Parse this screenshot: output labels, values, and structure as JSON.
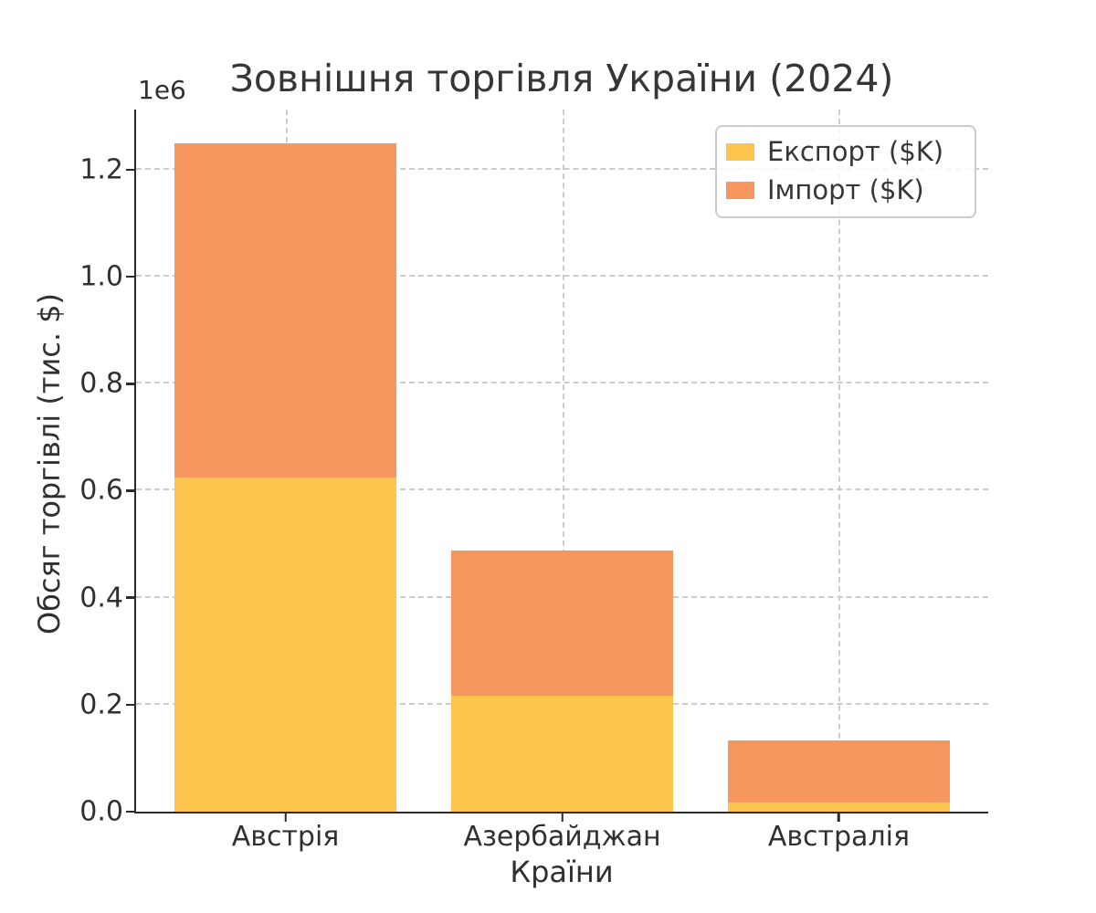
{
  "chart_data": {
    "type": "bar",
    "stacked": true,
    "title": "Зовнішня торгівля України (2024)",
    "xlabel": "Країни",
    "ylabel": "Обсяг торгівлі (тис. $)",
    "scale_offset": "1e6",
    "categories": [
      "Австрія",
      "Азербайджан",
      "Австралія"
    ],
    "series": [
      {
        "name": "Експорт ($K)",
        "color": "#FDC54D",
        "values": [
          625000,
          217000,
          17000
        ]
      },
      {
        "name": "Імпорт ($K)",
        "color": "#F5975E",
        "values": [
          625000,
          272000,
          116000
        ]
      }
    ],
    "totals": [
      1250000,
      489000,
      133000
    ],
    "ylim": [
      0,
      1312500
    ],
    "yticks": [
      0,
      200000,
      400000,
      600000,
      800000,
      1000000,
      1200000
    ],
    "ytick_labels": [
      "0.0",
      "0.2",
      "0.4",
      "0.6",
      "0.8",
      "1.0",
      "1.2"
    ],
    "grid": "both-dashed",
    "legend_position": "upper-right",
    "colors": {
      "grid": "#cccccc",
      "spine": "#2a2a2a",
      "text": "#303030",
      "legend_border": "#cccccc"
    }
  }
}
